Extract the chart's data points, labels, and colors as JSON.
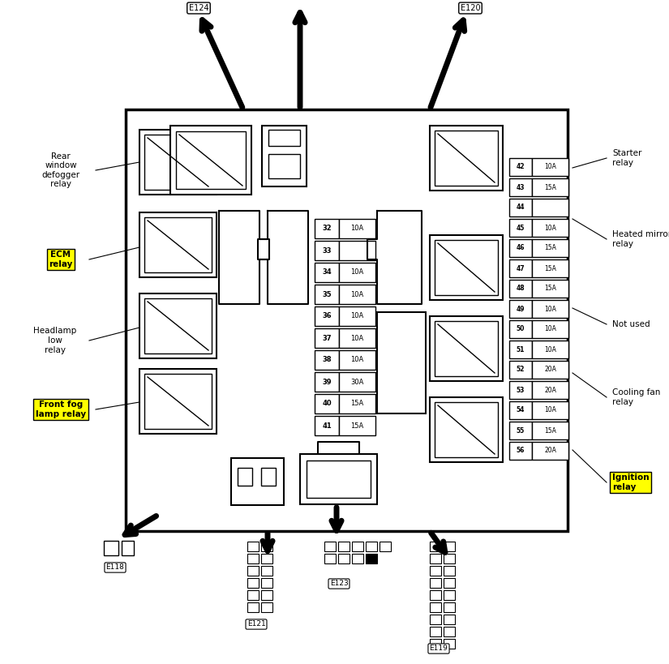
{
  "bg_color": "#ffffff",
  "yellow_color": "#ffff00",
  "fuses_center": [
    {
      "num": "32",
      "amp": "10A"
    },
    {
      "num": "33",
      "amp": ""
    },
    {
      "num": "34",
      "amp": "10A"
    },
    {
      "num": "35",
      "amp": "10A"
    },
    {
      "num": "36",
      "amp": "10A"
    },
    {
      "num": "37",
      "amp": "10A"
    },
    {
      "num": "38",
      "amp": "10A"
    },
    {
      "num": "39",
      "amp": "30A"
    },
    {
      "num": "40",
      "amp": "15A"
    },
    {
      "num": "41",
      "amp": "15A"
    }
  ],
  "fuses_right": [
    {
      "num": "42",
      "amp": "10A"
    },
    {
      "num": "43",
      "amp": "15A"
    },
    {
      "num": "44",
      "amp": ""
    },
    {
      "num": "45",
      "amp": "10A"
    },
    {
      "num": "46",
      "amp": "15A"
    },
    {
      "num": "47",
      "amp": "15A"
    },
    {
      "num": "48",
      "amp": "15A"
    },
    {
      "num": "49",
      "amp": "10A"
    },
    {
      "num": "50",
      "amp": "10A"
    },
    {
      "num": "51",
      "amp": "10A"
    },
    {
      "num": "52",
      "amp": "20A"
    },
    {
      "num": "53",
      "amp": "20A"
    },
    {
      "num": "54",
      "amp": "10A"
    },
    {
      "num": "55",
      "amp": "15A"
    },
    {
      "num": "56",
      "amp": "20A"
    }
  ]
}
